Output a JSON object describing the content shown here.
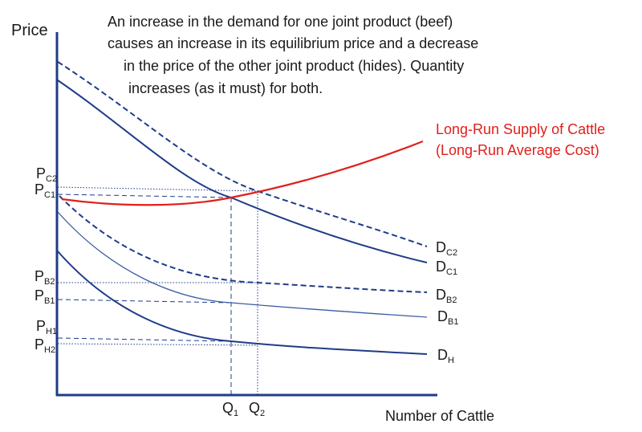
{
  "axes": {
    "y_label": "Price",
    "x_label": "Number of Cattle"
  },
  "caption": {
    "line1": "An increase in the demand for one joint product (beef)",
    "line2": "causes an increase in its equilibrium price and a decrease",
    "line3": "in the price of the other joint product (hides). Quantity",
    "line4": "increases (as it must) for both."
  },
  "supply": {
    "label_line1": "Long-Run Supply of Cattle",
    "label_line2": "(Long-Run Average Cost)"
  },
  "price_labels": {
    "pc2": {
      "main": "P",
      "sub": "C2"
    },
    "pc1": {
      "main": "P",
      "sub": "C1"
    },
    "pb2": {
      "main": "P",
      "sub": "B2"
    },
    "pb1": {
      "main": "P",
      "sub": "B1"
    },
    "ph1": {
      "main": "P",
      "sub": "H1"
    },
    "ph2": {
      "main": "P",
      "sub": "H2"
    }
  },
  "curve_labels": {
    "dc2": {
      "main": "D",
      "sub": "C2"
    },
    "dc1": {
      "main": "D",
      "sub": "C1"
    },
    "db2": {
      "main": "D",
      "sub": "B2"
    },
    "db1": {
      "main": "D",
      "sub": "B1"
    },
    "dh": {
      "main": "D",
      "sub": "H"
    }
  },
  "quantity_labels": {
    "q1": {
      "main": "Q",
      "sub": "1"
    },
    "q2": {
      "main": "Q",
      "sub": "2"
    }
  },
  "colors": {
    "demand": "#1f3c88",
    "supply": "#e0201b",
    "axis": "#1f3c88"
  }
}
